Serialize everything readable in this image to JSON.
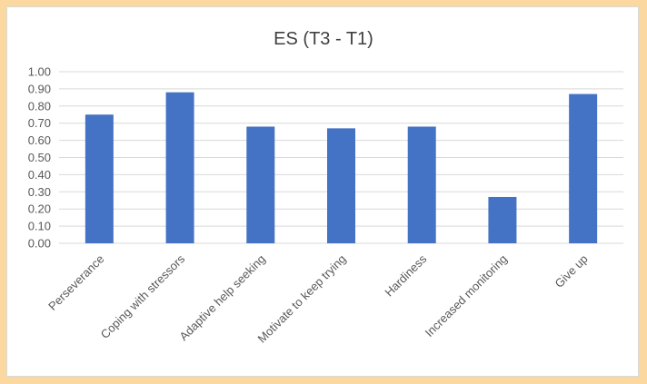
{
  "chart_data": {
    "type": "bar",
    "title": "ES (T3 - T1)",
    "xlabel": "",
    "ylabel": "",
    "categories": [
      "Perseverance",
      "Coping with stressors",
      "Adaptive help seeking",
      "Motivate to keep trying",
      "Hardiness",
      "Increased monitoring",
      "Give up"
    ],
    "values": [
      0.75,
      0.88,
      0.68,
      0.67,
      0.68,
      0.27,
      0.87
    ],
    "ylim": [
      0,
      1.0
    ],
    "yticks": [
      "0.00",
      "0.10",
      "0.20",
      "0.30",
      "0.40",
      "0.50",
      "0.60",
      "0.70",
      "0.80",
      "0.90",
      "1.00"
    ],
    "grid": true,
    "legend": "none",
    "bar_color": "#4472c4"
  }
}
